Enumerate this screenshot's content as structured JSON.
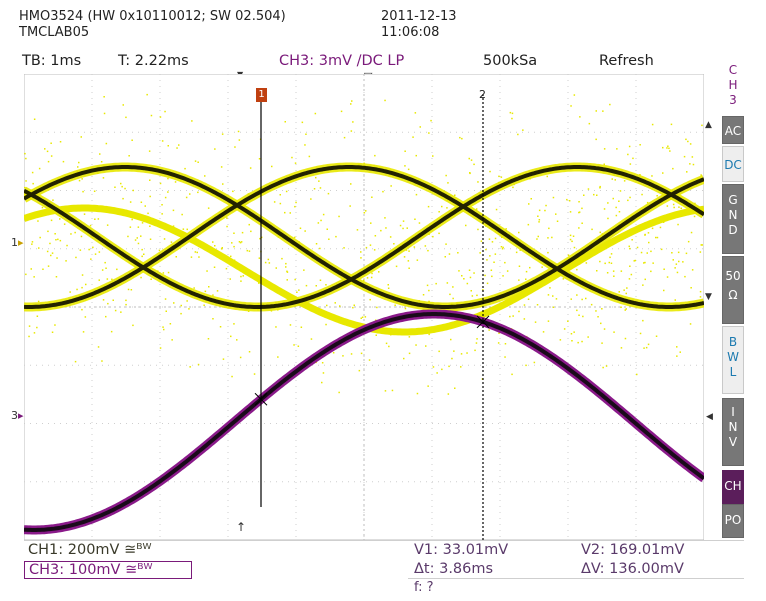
{
  "header": {
    "device": "HMO3524 (HW 0x10110012; SW 02.504)",
    "lab": "TMCLAB05",
    "date": "2011-12-13",
    "time": "11:06:08"
  },
  "topbar": {
    "timebase": "TB: 1ms",
    "trigger_time": "T: 2.22ms",
    "trigger": "CH3: 3mV ∕DC LP",
    "sample_rate": "500kSa",
    "mode": "Refresh"
  },
  "side_menu": {
    "title": [
      "C",
      "H",
      "3"
    ],
    "ac": "AC",
    "dc": "DC",
    "gnd": [
      "G",
      "N",
      "D"
    ],
    "ohm": [
      "50",
      "Ω"
    ],
    "bwl": [
      "B",
      "W",
      "L"
    ],
    "inv": [
      "I",
      "N",
      "V"
    ],
    "ch": "CH",
    "po": "PO"
  },
  "markers": {
    "ch1": "1",
    "ch3": "3",
    "cursor1": "1",
    "cursor2": "2",
    "trigger_pos": "▼",
    "trigger_pos2": "▽",
    "bottom_arrow": "↑"
  },
  "footer": {
    "ch1": "CH1: 200mV ≅ᴮᵂ",
    "ch3": "CH3: 100mV ≅ᴮᵂ",
    "v1": "V1: 33.01mV",
    "v2": "V2: 169.01mV",
    "dt": "Δt: 3.86ms",
    "dv": "ΔV: 136.00mV",
    "freq": "f: ?"
  },
  "colors": {
    "ch1_trace": "#e8e800",
    "ch1_dark": "#222200",
    "ch3_trace": "#8a1a8a",
    "grid": "#cfcfcf",
    "cursor": "#000000"
  }
}
